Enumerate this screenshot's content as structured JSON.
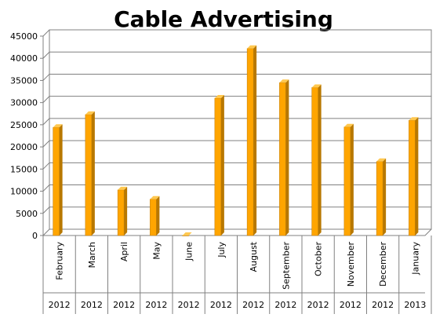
{
  "chart_data": {
    "type": "bar",
    "title": "Cable Advertising",
    "categories": [
      "February",
      "March",
      "April",
      "May",
      "June",
      "July",
      "August",
      "September",
      "October",
      "November",
      "December",
      "January"
    ],
    "years": [
      "2012",
      "2012",
      "2012",
      "2012",
      "2012",
      "2012",
      "2012",
      "2012",
      "2012",
      "2012",
      "2012",
      "2013"
    ],
    "values": [
      24400,
      27300,
      10300,
      8200,
      0,
      31000,
      42200,
      34500,
      33400,
      24500,
      16700,
      26000
    ],
    "ylim": [
      0,
      45000
    ],
    "yticks": [
      0,
      5000,
      10000,
      15000,
      20000,
      25000,
      30000,
      35000,
      40000,
      45000
    ],
    "grid": true,
    "bar_color": "#FFA500",
    "bar_side_color": "#B87800",
    "bar_top_color": "#FFC850",
    "xlabel": "",
    "ylabel": ""
  }
}
